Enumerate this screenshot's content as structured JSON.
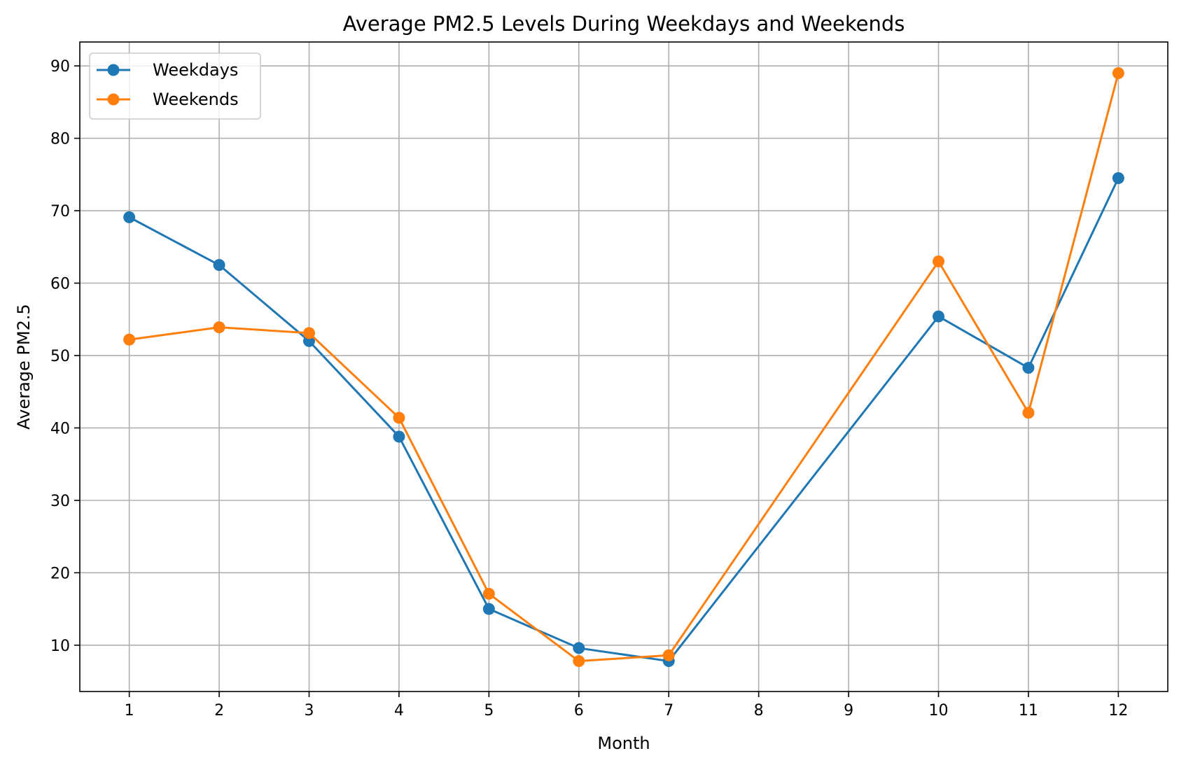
{
  "chart_data": {
    "type": "line",
    "title": "Average PM2.5 Levels During Weekdays and Weekends",
    "xlabel": "Month",
    "ylabel": "Average PM2.5",
    "x_ticks": [
      1,
      2,
      3,
      4,
      5,
      6,
      7,
      8,
      9,
      10,
      11,
      12
    ],
    "y_ticks": [
      10,
      20,
      30,
      40,
      50,
      60,
      70,
      80,
      90
    ],
    "xlim": [
      0.45,
      12.55
    ],
    "ylim": [
      3.6,
      93.3
    ],
    "grid": true,
    "legend_position": "upper-left",
    "series": [
      {
        "name": "Weekdays",
        "color": "#1f77b4",
        "marker": "circle",
        "x": [
          1,
          2,
          3,
          4,
          5,
          6,
          7,
          10,
          11,
          12
        ],
        "y": [
          69.1,
          62.5,
          52.0,
          38.8,
          15.0,
          9.6,
          7.8,
          55.4,
          48.3,
          74.5
        ]
      },
      {
        "name": "Weekends",
        "color": "#ff7f0e",
        "marker": "circle",
        "x": [
          1,
          2,
          3,
          4,
          5,
          6,
          7,
          10,
          11,
          12
        ],
        "y": [
          52.2,
          53.9,
          53.1,
          41.4,
          17.1,
          7.8,
          8.6,
          63.0,
          42.1,
          89.0
        ]
      }
    ]
  }
}
